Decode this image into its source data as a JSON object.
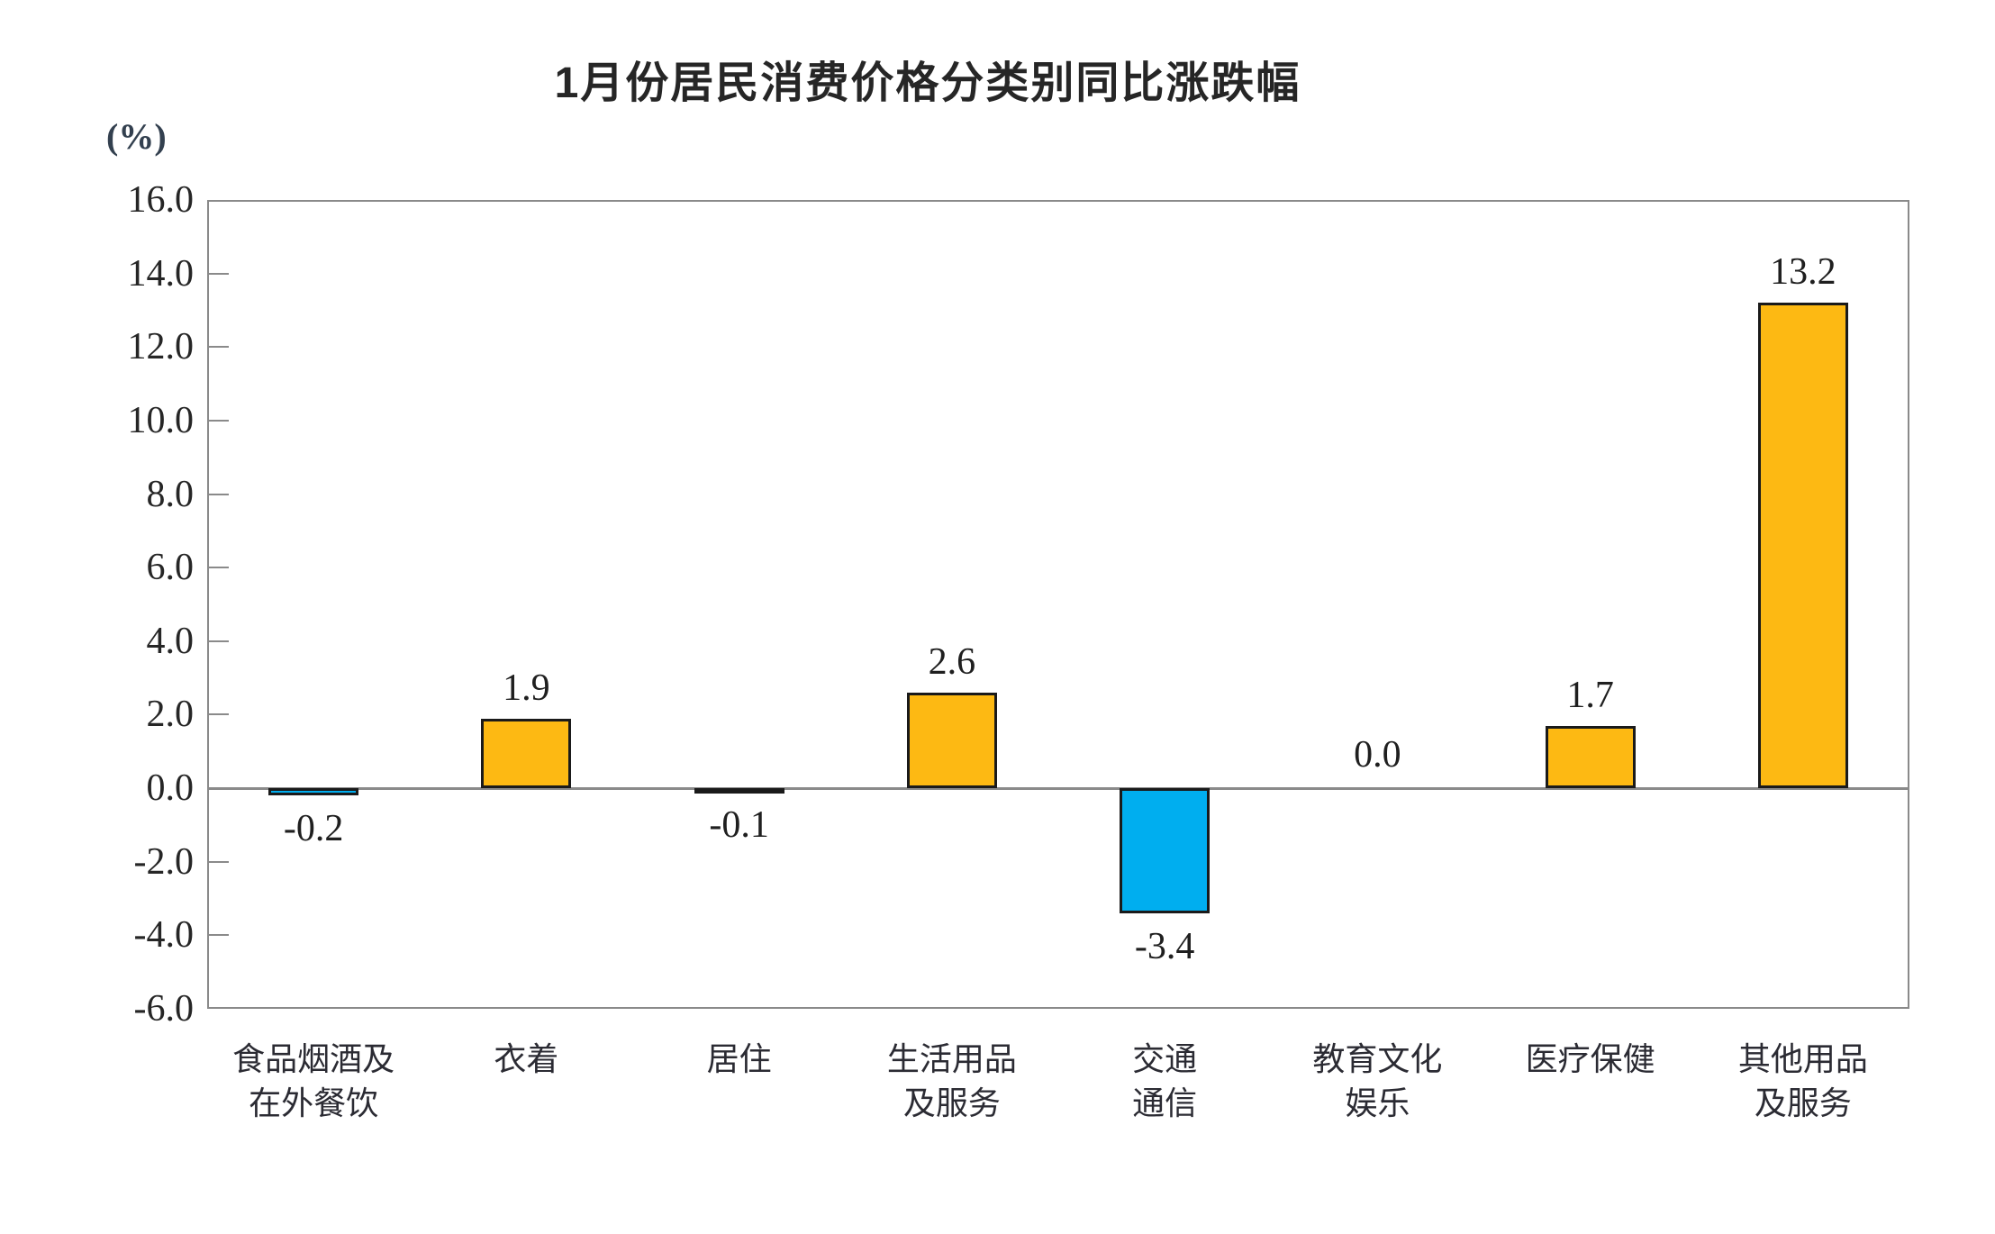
{
  "chart_data": {
    "type": "bar",
    "title": "1月份居民消费价格分类别同比涨跌幅",
    "unit_label": "(%)",
    "categories": [
      "食品烟酒及\n在外餐饮",
      "衣着",
      "居住",
      "生活用品\n及服务",
      "交通\n通信",
      "教育文化\n娱乐",
      "医疗保健",
      "其他用品\n及服务"
    ],
    "values": [
      -0.2,
      1.9,
      -0.1,
      2.6,
      -3.4,
      0.0,
      1.7,
      13.2
    ],
    "value_labels": [
      "-0.2",
      "1.9",
      "-0.1",
      "2.6",
      "-3.4",
      "0.0",
      "1.7",
      "13.2"
    ],
    "bar_colors": [
      "#00AEEF",
      "#FDB913",
      "#00AEEF",
      "#FDB913",
      "#00AEEF",
      null,
      "#FDB913",
      "#FDB913"
    ],
    "xlabel": "",
    "ylabel": "(%)",
    "ylim": [
      -6,
      16
    ],
    "ytick_step": 2,
    "ytick_labels": [
      "16.0",
      "14.0",
      "12.0",
      "10.0",
      "8.0",
      "6.0",
      "4.0",
      "2.0",
      "0.0",
      "-2.0",
      "-4.0",
      "-6.0"
    ],
    "grid": false,
    "legend_position": "none",
    "colors": {
      "positive_bar": "#FDB913",
      "negative_bar": "#00AEEF",
      "bar_border": "#1A1A1A",
      "axis": "#8A8A8A",
      "text": "#1F1F1F"
    }
  }
}
